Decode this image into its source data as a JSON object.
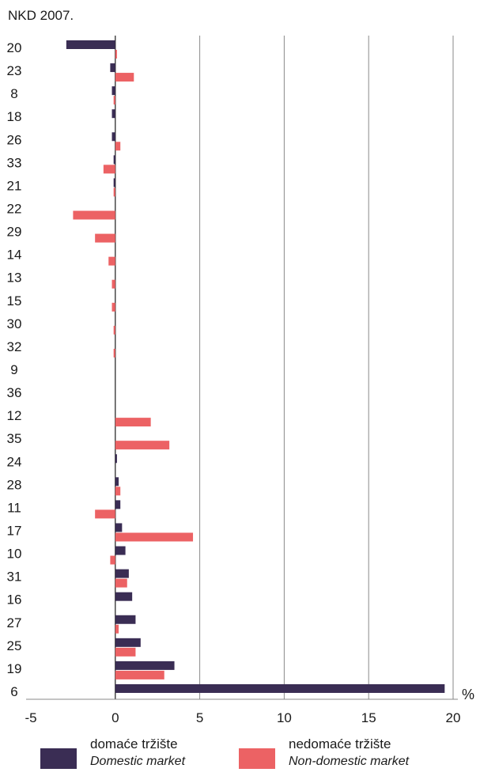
{
  "chart_data": {
    "type": "bar",
    "orientation": "horizontal",
    "ylabel": "NKD 2007.",
    "unit_label": "%",
    "xlim": [
      -5,
      20
    ],
    "xticks": [
      "-5",
      "0",
      "5",
      "10",
      "15",
      "20"
    ],
    "grid": "vertical",
    "legend_position": "bottom",
    "categories": [
      "20",
      "23",
      "8",
      "18",
      "26",
      "33",
      "21",
      "22",
      "29",
      "14",
      "13",
      "15",
      "30",
      "32",
      "9",
      "36",
      "12",
      "35",
      "24",
      "28",
      "11",
      "17",
      "10",
      "31",
      "16",
      "27",
      "25",
      "19",
      "6"
    ],
    "series": [
      {
        "name": "domaće tržište",
        "name_en": "Domestic market",
        "color": "#3a2d54",
        "values": [
          -2.9,
          -0.3,
          -0.2,
          -0.2,
          -0.2,
          -0.1,
          -0.1,
          0,
          0,
          0,
          0,
          0,
          0,
          0,
          0,
          0,
          0,
          0,
          0.1,
          0.2,
          0.3,
          0.4,
          0.6,
          0.8,
          1.0,
          1.2,
          1.5,
          3.5,
          19.5
        ]
      },
      {
        "name": "nedomaće tržište",
        "name_en": "Non-domestic market",
        "color": "#ec6264",
        "values": [
          0.1,
          1.1,
          -0.1,
          0,
          0.3,
          -0.7,
          -0.1,
          -2.5,
          -1.2,
          -0.4,
          -0.2,
          -0.2,
          -0.1,
          -0.1,
          0,
          0,
          2.1,
          3.2,
          0,
          0.3,
          -1.2,
          4.6,
          -0.3,
          0.7,
          0,
          0.2,
          1.2,
          2.9,
          0
        ]
      }
    ]
  }
}
